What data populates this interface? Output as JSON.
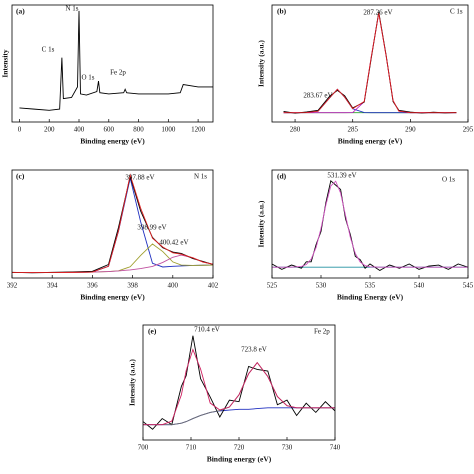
{
  "chart_data": [
    {
      "type": "line",
      "panel_label": "(a)",
      "xlabel": "Binding energy (eV)",
      "ylabel": "Intensity",
      "annotations": [
        "C 1s",
        "N 1s",
        "O 1s",
        "Fe 2p"
      ],
      "xlim": [
        -50,
        1300
      ],
      "xticks": [
        0,
        200,
        400,
        600,
        800,
        1000,
        1200
      ],
      "ylim": [
        0,
        100
      ],
      "x": [
        0,
        100,
        200,
        270,
        285,
        295,
        350,
        390,
        400,
        410,
        450,
        520,
        531,
        540,
        600,
        700,
        710,
        720,
        800,
        900,
        1000,
        1080,
        1100,
        1200,
        1300
      ],
      "series": [
        {
          "color": "#000000",
          "values": [
            12,
            11,
            10,
            11,
            55,
            20,
            21,
            30,
            95,
            24,
            23,
            26,
            35,
            25,
            24,
            25,
            28,
            25,
            24,
            24,
            24,
            25,
            32,
            30,
            30
          ]
        }
      ]
    },
    {
      "type": "line",
      "panel_label": "(b)",
      "xlabel": "Binding energy (eV)",
      "ylabel": "Intensity (a.u.)",
      "annotations": [
        "C 1s",
        "287.26 eV",
        "283.67 eV"
      ],
      "xlim": [
        278,
        295
      ],
      "xticks": [
        280,
        285,
        290,
        295
      ],
      "ylim": [
        0,
        100
      ],
      "x": [
        279,
        280,
        281,
        282,
        283,
        283.67,
        284.3,
        285,
        286,
        286.6,
        287.26,
        287.9,
        288.5,
        289,
        290,
        291,
        292,
        293,
        294
      ],
      "series": [
        {
          "color": "#2ca02c",
          "values": [
            8,
            8,
            8,
            8,
            8,
            8,
            8,
            8,
            8,
            8,
            8,
            8,
            8,
            8,
            8,
            8,
            8,
            8,
            8
          ]
        },
        {
          "color": "#2030c0",
          "values": [
            8,
            8,
            8.1,
            9.2,
            20.7,
            28,
            21.3,
            11.3,
            8.1,
            8,
            8,
            8,
            8,
            8,
            8,
            8,
            8,
            8,
            8
          ]
        },
        {
          "color": "#c020c0",
          "values": [
            8,
            8,
            8,
            8,
            8,
            8,
            8,
            8.1,
            17.4,
            55,
            93,
            56.5,
            18.3,
            9.3,
            8,
            8,
            8,
            8,
            8
          ]
        },
        {
          "color": "#000000",
          "values": [
            9,
            7.5,
            8.6,
            10,
            22,
            27,
            22.5,
            12,
            17,
            54,
            94,
            57,
            17.5,
            10,
            8.5,
            7.6,
            8.4,
            7.8,
            8.2
          ]
        },
        {
          "color": "#e02020",
          "values": [
            8,
            8,
            8.1,
            9.2,
            20.7,
            28,
            21.3,
            11.4,
            17.5,
            55,
            93,
            56.5,
            18.3,
            9.3,
            8,
            8,
            8,
            8,
            8
          ]
        }
      ]
    },
    {
      "type": "line",
      "panel_label": "(c)",
      "xlabel": "Binding energy (eV)",
      "annotations": [
        "N 1s",
        "397.88 eV",
        "398.99 eV",
        "400.42 eV"
      ],
      "xlim": [
        392,
        402
      ],
      "xticks": [
        392,
        394,
        396,
        398,
        400,
        402
      ],
      "ylim": [
        0,
        100
      ],
      "x": [
        392,
        393,
        394,
        395,
        396,
        396.8,
        397.3,
        397.88,
        398.4,
        398.99,
        399.5,
        400,
        400.42,
        401,
        401.5,
        402
      ],
      "series": [
        {
          "color": "#2030c0",
          "values": [
            5,
            5,
            5,
            5.2,
            5.5,
            10.8,
            43.5,
            92.5,
            52.1,
            13.6,
            10.2,
            10.8,
            11.2,
            11.6,
            11.8,
            12
          ]
        },
        {
          "color": "#a0a030",
          "values": [
            5,
            5,
            5,
            5.2,
            5.5,
            6,
            6.7,
            10.4,
            20.9,
            31.5,
            24.5,
            14.9,
            12,
            11.6,
            11.8,
            12
          ]
        },
        {
          "color": "#c050a0",
          "values": [
            5,
            5,
            5,
            5.2,
            5.5,
            6,
            6.5,
            7.5,
            8.7,
            10.7,
            14.4,
            19.2,
            21.2,
            18.7,
            14.8,
            12.8
          ]
        },
        {
          "color": "#000000",
          "values": [
            5.3,
            4.8,
            5.2,
            5.6,
            6.2,
            12.5,
            47,
            94,
            62,
            37.5,
            28,
            24,
            22.8,
            18,
            15.3,
            12.5
          ]
        },
        {
          "color": "#e02020",
          "values": [
            5,
            5,
            5,
            5.2,
            5.5,
            10.8,
            43.7,
            95.4,
            64.7,
            36.8,
            28.7,
            23.3,
            22,
            18.7,
            14.8,
            12.8
          ]
        }
      ]
    },
    {
      "type": "line",
      "panel_label": "(d)",
      "xlabel": "Binding Energy (eV)",
      "ylabel": "Intensity (a.u.)",
      "annotations": [
        "O 1s",
        "531.39 eV"
      ],
      "xlim": [
        525,
        545
      ],
      "xticks": [
        525,
        530,
        535,
        540,
        545
      ],
      "ylim": [
        0,
        100
      ],
      "x": [
        525,
        526,
        527,
        528,
        528.5,
        529,
        529.5,
        530,
        530.5,
        531,
        531.5,
        532,
        532.5,
        533,
        533.5,
        534,
        534.5,
        535,
        536,
        537,
        538,
        539,
        540,
        541,
        542,
        543,
        544,
        545
      ],
      "series": [
        {
          "color": "#2090a0",
          "values": [
            10,
            10,
            10,
            10,
            10,
            10,
            10,
            10,
            10,
            10,
            10,
            10,
            10,
            10,
            10,
            10,
            10,
            10,
            10,
            10,
            10,
            10,
            10,
            10,
            10,
            10,
            10,
            10
          ]
        },
        {
          "color": "#000000",
          "values": [
            13,
            8,
            12,
            9,
            15,
            15,
            31,
            43,
            70,
            90,
            86,
            82,
            55,
            40,
            20,
            17,
            9,
            13,
            7,
            12,
            9,
            13,
            8,
            11,
            12,
            8,
            13,
            10
          ]
        },
        {
          "color": "#d050c0",
          "values": [
            10,
            10,
            10,
            10.7,
            12.5,
            17.5,
            28.3,
            46,
            67.7,
            85.2,
            89.6,
            78.6,
            58,
            37.4,
            22.7,
            14.8,
            11.5,
            10.4,
            10,
            10,
            10,
            10,
            10,
            10,
            10,
            10,
            10,
            10
          ]
        }
      ]
    },
    {
      "type": "line",
      "panel_label": "(e)",
      "xlabel": "Binding energy (eV)",
      "ylabel": "Intensity (a.u.)",
      "annotations": [
        "Fe 2p",
        "710.4 eV",
        "723.8 eV"
      ],
      "xlim": [
        700,
        740
      ],
      "xticks": [
        700,
        710,
        720,
        730,
        740
      ],
      "ylim": [
        10,
        85
      ],
      "x": [
        700,
        702,
        704,
        706,
        708,
        709,
        710.4,
        712,
        714,
        716,
        718,
        720,
        722,
        723.8,
        726,
        728,
        730,
        732,
        734,
        736,
        738,
        740
      ],
      "series": [
        {
          "color": "#2030c0",
          "values": [
            20,
            20,
            20,
            20,
            21,
            22,
            24,
            26,
            28,
            29,
            29.5,
            30,
            30,
            30.5,
            31,
            31,
            31,
            31,
            31,
            31,
            31,
            31
          ]
        },
        {
          "color": "#000000",
          "values": [
            22,
            17,
            24,
            20,
            45,
            52,
            78,
            50,
            38,
            25,
            36,
            35,
            58,
            56,
            55,
            33,
            36,
            26,
            34,
            28,
            35,
            29
          ]
        },
        {
          "color": "#707070",
          "values": [
            20,
            20,
            20,
            20,
            21,
            22,
            24,
            26,
            28,
            29.2,
            31.5,
            39.5,
            53.2,
            60.5,
            51.4,
            38.3,
            32.4,
            31,
            31,
            31,
            31,
            31
          ]
        },
        {
          "color": "#d02060",
          "values": [
            20,
            20,
            20,
            22.3,
            39.5,
            55.3,
            69,
            56.2,
            34.1,
            29.6,
            31.5,
            39.5,
            53.2,
            60.5,
            51.4,
            38.3,
            32.4,
            31,
            31,
            31,
            31,
            31
          ]
        }
      ]
    }
  ]
}
